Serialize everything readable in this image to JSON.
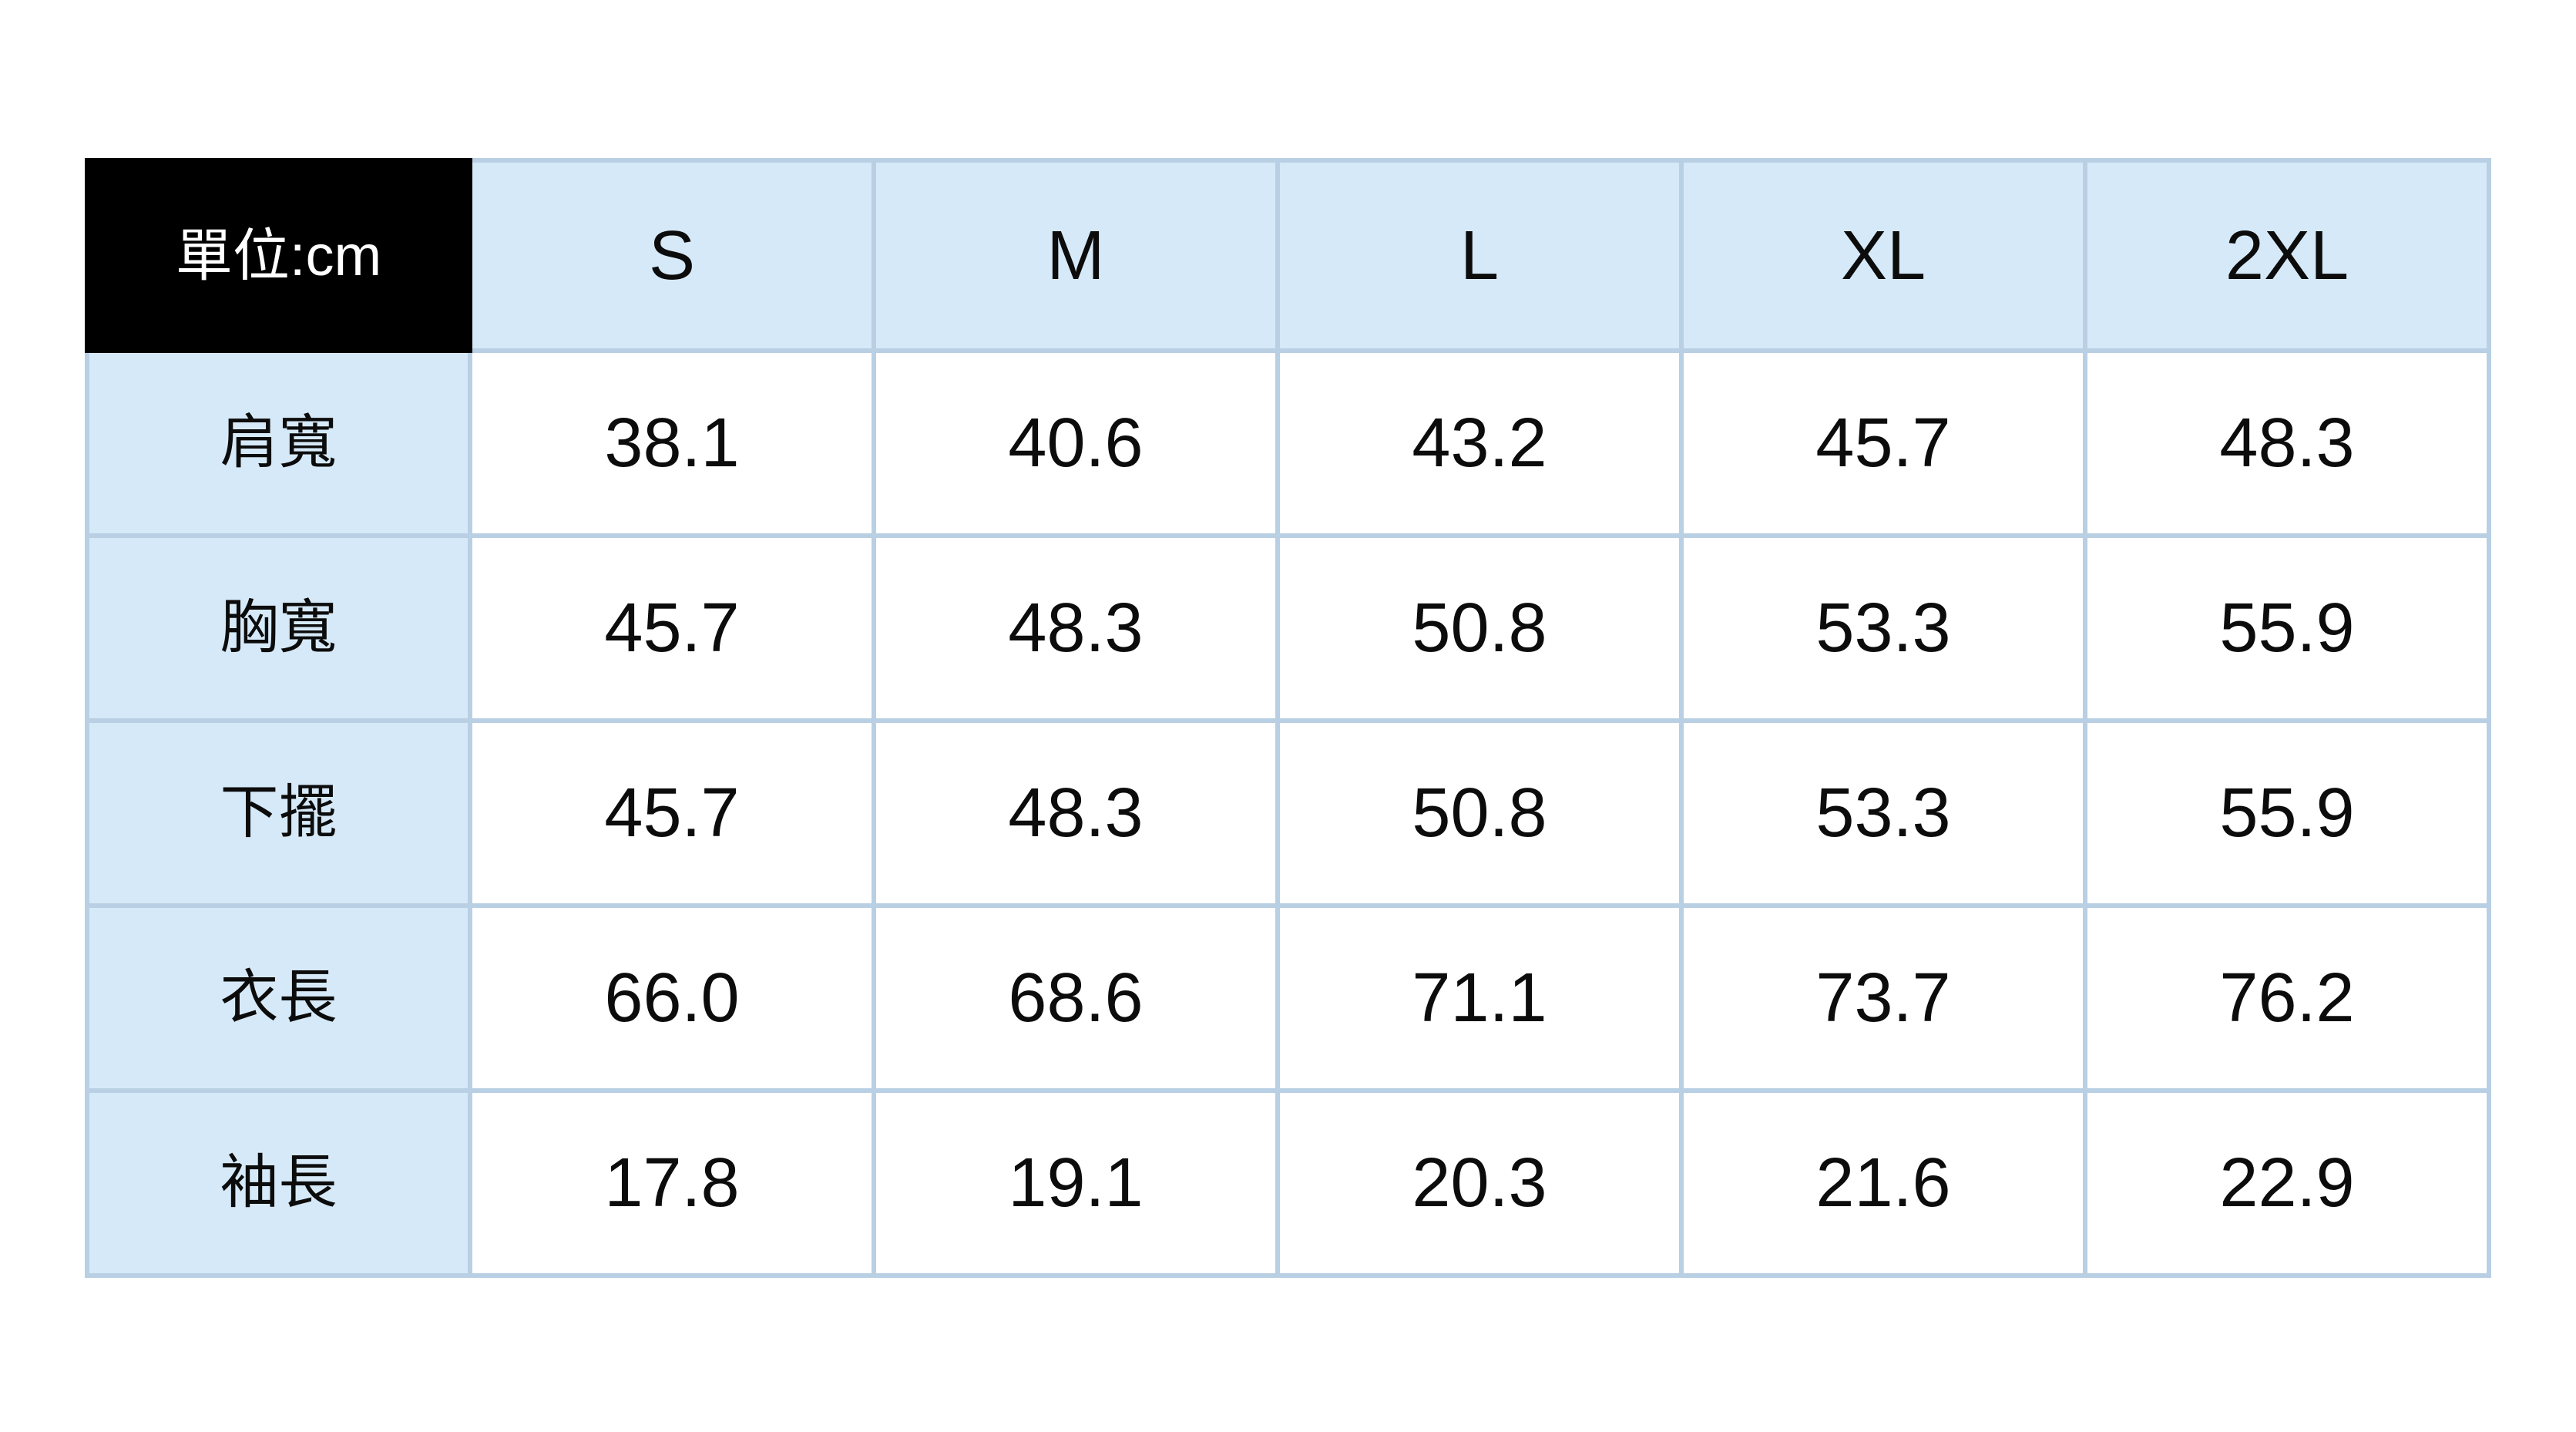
{
  "chart_data": {
    "type": "table",
    "title": "單位:cm",
    "columns": [
      "S",
      "M",
      "L",
      "XL",
      "2XL"
    ],
    "row_labels": [
      "肩寬",
      "胸寬",
      "下擺",
      "衣長",
      "袖長"
    ],
    "values": [
      [
        38.1,
        40.6,
        43.2,
        45.7,
        48.3
      ],
      [
        45.7,
        48.3,
        50.8,
        53.3,
        55.9
      ],
      [
        45.7,
        48.3,
        50.8,
        53.3,
        55.9
      ],
      [
        66.0,
        68.6,
        71.1,
        73.7,
        76.2
      ],
      [
        17.8,
        19.1,
        20.3,
        21.6,
        22.9
      ]
    ]
  },
  "table": {
    "unit_label": "單位:cm",
    "size_headers": [
      "S",
      "M",
      "L",
      "XL",
      "2XL"
    ],
    "rows": [
      {
        "label": "肩寬",
        "values": [
          "38.1",
          "40.6",
          "43.2",
          "45.7",
          "48.3"
        ]
      },
      {
        "label": "胸寬",
        "values": [
          "45.7",
          "48.3",
          "50.8",
          "53.3",
          "55.9"
        ]
      },
      {
        "label": "下擺",
        "values": [
          "45.7",
          "48.3",
          "50.8",
          "53.3",
          "55.9"
        ]
      },
      {
        "label": "衣長",
        "values": [
          "66.0",
          "68.6",
          "71.1",
          "73.7",
          "76.2"
        ]
      },
      {
        "label": "袖長",
        "values": [
          "17.8",
          "19.1",
          "20.3",
          "21.6",
          "22.9"
        ]
      }
    ]
  },
  "colors": {
    "header_bg": "#d6e9f8",
    "corner_bg": "#000000",
    "corner_text": "#ffffff",
    "border": "#b9cfe3",
    "cell_bg": "#ffffff",
    "text": "#0c0c0c"
  }
}
